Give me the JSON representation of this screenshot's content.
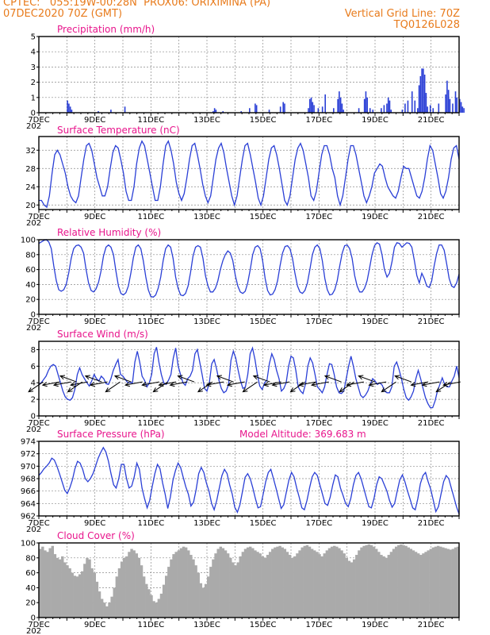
{
  "header": {
    "line1_left": "CPTEC:   055:19W-00:28N  PROX06: ORIXIMINA (PA)",
    "line2_left": "07DEC2020 70Z (GMT)",
    "line2_right": "Vertical Grid Line: 70Z",
    "line3_right": "TQ0126L028",
    "color": "#e87b1c"
  },
  "colors": {
    "series": "#2a3fd6",
    "title": "#e8158c",
    "cloud": "#aaaaaa",
    "grid": "#8a8a8a"
  },
  "x_axis": {
    "start": "7DEC",
    "end": "22DEC",
    "day_ticks": [
      "7DEC",
      "9DEC",
      "11DEC",
      "13DEC",
      "15DEC",
      "17DEC",
      "19DEC",
      "21DEC"
    ],
    "cut_label": "202"
  },
  "chart_data": [
    {
      "type": "bar",
      "title": "Precipitation (mm/h)",
      "ylim": [
        0,
        5
      ],
      "yticks": [
        "0",
        "1",
        "2",
        "3",
        "4",
        "5"
      ],
      "x_unit": "days since 7DEC 00Z",
      "bars": [
        [
          1.0,
          0.8
        ],
        [
          1.05,
          0.6
        ],
        [
          1.1,
          0.4
        ],
        [
          1.15,
          0.2
        ],
        [
          2.1,
          0.1
        ],
        [
          2.55,
          0.2
        ],
        [
          3.05,
          0.4
        ],
        [
          6.2,
          0.1
        ],
        [
          6.25,
          0.3
        ],
        [
          6.3,
          0.2
        ],
        [
          6.55,
          0.1
        ],
        [
          7.2,
          0.1
        ],
        [
          7.5,
          0.3
        ],
        [
          7.7,
          0.6
        ],
        [
          7.75,
          0.5
        ],
        [
          8.2,
          0.2
        ],
        [
          8.6,
          0.4
        ],
        [
          8.7,
          0.7
        ],
        [
          8.75,
          0.6
        ],
        [
          9.6,
          0.3
        ],
        [
          9.65,
          0.9
        ],
        [
          9.7,
          1.0
        ],
        [
          9.75,
          0.7
        ],
        [
          9.8,
          0.5
        ],
        [
          9.95,
          0.3
        ],
        [
          10.1,
          0.4
        ],
        [
          10.2,
          1.2
        ],
        [
          10.5,
          0.3
        ],
        [
          10.65,
          0.9
        ],
        [
          10.7,
          1.4
        ],
        [
          10.75,
          1.0
        ],
        [
          10.8,
          0.6
        ],
        [
          10.85,
          0.2
        ],
        [
          11.4,
          0.3
        ],
        [
          11.6,
          0.9
        ],
        [
          11.65,
          1.4
        ],
        [
          11.7,
          1.0
        ],
        [
          11.8,
          0.3
        ],
        [
          11.9,
          0.2
        ],
        [
          12.2,
          0.3
        ],
        [
          12.3,
          0.5
        ],
        [
          12.4,
          0.6
        ],
        [
          12.45,
          1.0
        ],
        [
          12.5,
          0.8
        ],
        [
          12.55,
          0.2
        ],
        [
          12.95,
          0.2
        ],
        [
          13.05,
          0.6
        ],
        [
          13.15,
          0.8
        ],
        [
          13.3,
          1.4
        ],
        [
          13.4,
          0.8
        ],
        [
          13.5,
          0.3
        ],
        [
          13.55,
          1.8
        ],
        [
          13.6,
          2.4
        ],
        [
          13.65,
          2.9
        ],
        [
          13.7,
          2.9
        ],
        [
          13.75,
          2.5
        ],
        [
          13.8,
          1.3
        ],
        [
          13.85,
          0.4
        ],
        [
          13.95,
          0.5
        ],
        [
          14.05,
          0.3
        ],
        [
          14.25,
          0.6
        ],
        [
          14.5,
          1.2
        ],
        [
          14.55,
          2.1
        ],
        [
          14.6,
          1.5
        ],
        [
          14.65,
          0.9
        ],
        [
          14.75,
          0.6
        ],
        [
          14.85,
          1.4
        ],
        [
          14.9,
          1.0
        ],
        [
          15.0,
          0.9
        ],
        [
          15.05,
          0.7
        ],
        [
          15.1,
          0.4
        ],
        [
          15.15,
          0.3
        ]
      ]
    },
    {
      "type": "line",
      "title": "Surface Temperature (nC)",
      "ylim": [
        19,
        35
      ],
      "yticks": [
        "20",
        "24",
        "28",
        "32"
      ],
      "values": [
        21,
        21,
        20,
        19.5,
        22,
        27,
        31,
        32,
        31,
        29,
        27,
        24,
        22,
        21,
        20.5,
        22,
        26,
        30,
        33,
        33.5,
        32,
        29,
        26,
        24,
        22,
        22,
        24,
        28,
        31.5,
        33,
        32.5,
        30,
        27,
        23,
        21,
        21,
        24,
        29,
        32.5,
        34,
        33,
        30,
        27,
        24,
        21,
        21,
        24,
        29,
        33,
        34,
        32,
        29,
        25,
        22.5,
        21,
        22.5,
        26,
        30,
        33,
        33.5,
        31,
        28,
        24.5,
        22,
        20.5,
        22,
        26,
        30,
        32.5,
        33.5,
        31.5,
        28,
        25,
        22,
        20,
        22,
        26,
        30,
        33,
        33.5,
        31,
        28,
        25,
        21.5,
        20,
        22,
        26,
        30,
        32.5,
        33,
        31,
        28,
        24.5,
        21,
        20,
        22,
        26,
        30,
        32.5,
        33.5,
        32,
        29,
        26,
        22,
        21,
        23,
        27,
        31,
        33,
        33,
        31,
        28,
        26,
        22,
        20,
        22,
        26,
        30,
        33,
        33,
        31,
        28,
        25,
        22,
        20.5,
        22,
        24,
        27,
        28,
        29,
        28.5,
        26,
        24,
        23,
        22,
        21.5,
        23,
        26,
        28.5,
        28,
        28,
        26,
        24,
        22,
        21.5,
        23,
        26,
        30,
        33,
        32,
        29,
        26,
        22.5,
        21.5,
        23,
        26,
        30,
        32.5,
        33,
        30
      ]
    },
    {
      "type": "line",
      "title": "Relative Humidity (%)",
      "ylim": [
        0,
        100
      ],
      "yticks": [
        "0",
        "20",
        "40",
        "60",
        "80",
        "100"
      ],
      "values": [
        95,
        97,
        99,
        100,
        97,
        88,
        65,
        45,
        33,
        31,
        33,
        40,
        55,
        75,
        88,
        92,
        93,
        90,
        82,
        60,
        42,
        32,
        30,
        34,
        43,
        58,
        78,
        90,
        93,
        90,
        80,
        58,
        38,
        28,
        26,
        29,
        38,
        55,
        76,
        90,
        93,
        88,
        72,
        50,
        33,
        24,
        23,
        26,
        35,
        50,
        72,
        88,
        93,
        90,
        75,
        50,
        35,
        26,
        25,
        28,
        38,
        56,
        78,
        90,
        92,
        90,
        75,
        52,
        38,
        30,
        30,
        35,
        45,
        60,
        72,
        80,
        85,
        82,
        72,
        52,
        38,
        30,
        28,
        31,
        42,
        60,
        80,
        90,
        92,
        88,
        72,
        48,
        32,
        26,
        27,
        33,
        45,
        65,
        82,
        91,
        92,
        88,
        75,
        55,
        38,
        30,
        28,
        32,
        42,
        60,
        80,
        90,
        93,
        88,
        72,
        48,
        33,
        26,
        27,
        33,
        45,
        65,
        82,
        92,
        93,
        88,
        75,
        52,
        38,
        30,
        30,
        35,
        45,
        62,
        80,
        92,
        96,
        94,
        80,
        60,
        50,
        55,
        70,
        90,
        96,
        95,
        90,
        93,
        96,
        95,
        90,
        72,
        52,
        42,
        55,
        48,
        38,
        36,
        45,
        65,
        82,
        93,
        93,
        86,
        68,
        48,
        38,
        36,
        42,
        54
      ]
    },
    {
      "type": "line",
      "title": "Surface Wind (m/s)",
      "ylim": [
        0,
        9
      ],
      "yticks": [
        "0",
        "2",
        "4",
        "6",
        "8"
      ],
      "values": [
        3.8,
        4,
        4.4,
        4.8,
        5.5,
        6,
        6.2,
        6,
        5,
        4,
        3,
        2.3,
        2,
        1.9,
        2.2,
        3.2,
        5,
        5.8,
        5,
        4.5,
        4,
        3.6,
        4.2,
        5,
        4.5,
        4.2,
        4.8,
        4.5,
        3.9,
        3.8,
        4.5,
        5.5,
        6.2,
        6.8,
        5,
        4.8,
        4.4,
        4,
        4,
        4,
        6.5,
        7.8,
        6.5,
        4.8,
        4.3,
        3.5,
        4,
        5,
        7.5,
        8.3,
        6.5,
        5,
        4,
        3.8,
        4.3,
        5,
        7,
        8.2,
        6,
        5,
        4,
        3.7,
        4.5,
        4.8,
        5.5,
        7.5,
        8,
        6.5,
        5,
        3.3,
        3,
        4,
        6.3,
        6.8,
        5.7,
        4.3,
        3.3,
        2.8,
        3,
        3.8,
        6.7,
        7.8,
        7,
        5.5,
        4.2,
        3.3,
        3.5,
        5,
        7.5,
        8.2,
        6.8,
        5,
        3.6,
        3.2,
        4,
        4.3,
        6.3,
        7.5,
        6.8,
        5.5,
        4.5,
        3,
        3.3,
        4,
        6,
        7.2,
        7,
        5.5,
        3.5,
        3,
        2.7,
        3.8,
        6,
        7,
        6.4,
        5,
        3.5,
        3.2,
        2.8,
        3.5,
        5,
        6.3,
        6.2,
        5,
        3.5,
        2.8,
        2.7,
        3,
        4.5,
        6,
        7.2,
        6,
        4.5,
        3.5,
        2.5,
        2.2,
        2.5,
        3,
        3.8,
        4.5,
        4.2,
        3.8,
        4,
        3.7,
        3,
        2.8,
        2.8,
        3.5,
        6,
        6.5,
        5.6,
        4.5,
        3.2,
        2.2,
        1.9,
        2.3,
        3,
        4.5,
        5.5,
        4.5,
        3.3,
        2.2,
        1.5,
        1,
        1,
        1.8,
        3,
        3.8,
        4.6,
        3.8,
        3.5,
        3.5,
        4.2,
        4.8,
        6,
        4.6
      ],
      "arrow_days": [
        0.15,
        0.75,
        1.15,
        1.35,
        1.55,
        1.75,
        2.25,
        2.45,
        2.9,
        3.3,
        3.7,
        4.3,
        4.6,
        4.9,
        5.3,
        5.55,
        6.2,
        6.6,
        6.95,
        7.35,
        7.8,
        8.25,
        8.65,
        8.95,
        9.5,
        9.9,
        10.35,
        10.8,
        11.25,
        11.6,
        12.0,
        12.4,
        12.75,
        13.3,
        13.9,
        14.3,
        14.7,
        15.05
      ]
    },
    {
      "type": "line",
      "title": "Surface Pressure (hPa)",
      "subtitle": "Model Altitude: 369.683  m",
      "ylim": [
        962,
        974
      ],
      "yticks": [
        "962",
        "964",
        "966",
        "968",
        "970",
        "972",
        "974"
      ],
      "values": [
        968.5,
        969,
        969.6,
        970,
        970.5,
        971.3,
        971,
        970,
        968.8,
        967.5,
        966.2,
        965.6,
        966.5,
        967.8,
        969.6,
        970.8,
        970.5,
        969.5,
        968,
        967.5,
        968,
        968.8,
        970,
        971.3,
        972.2,
        973,
        972.3,
        970.8,
        968.8,
        967,
        966.5,
        968,
        970.3,
        970.3,
        968,
        966.5,
        966.8,
        968.3,
        970.5,
        969.5,
        966.5,
        964.8,
        963.3,
        964.5,
        966.8,
        968.8,
        970.3,
        969.6,
        967.3,
        965.5,
        963.2,
        965,
        967.7,
        969.3,
        970.5,
        969.8,
        968.2,
        966.7,
        965.5,
        963.6,
        964.2,
        966.2,
        968.8,
        969.8,
        969,
        967.3,
        966,
        964,
        963,
        964.5,
        966.5,
        968.5,
        969.5,
        968.8,
        967,
        965.5,
        963.4,
        962.6,
        963.8,
        966,
        968.2,
        968.8,
        968,
        966.5,
        964.8,
        963.3,
        963.5,
        965.5,
        967.5,
        969,
        969.5,
        968,
        966.5,
        964.8,
        963.2,
        963.8,
        965.8,
        967.8,
        969,
        968.3,
        966.5,
        965,
        963.3,
        963,
        964.5,
        966.5,
        968.3,
        969,
        968.5,
        967,
        965.5,
        964,
        963.7,
        965,
        967,
        968.6,
        968.3,
        966.5,
        965.3,
        964,
        963.5,
        964.8,
        967,
        968.5,
        969,
        968,
        966.5,
        965,
        963.5,
        963.3,
        964.8,
        967,
        968.3,
        968,
        967,
        966,
        964.5,
        963.4,
        964,
        966,
        967.8,
        968.6,
        967.5,
        966,
        964.7,
        963.3,
        963,
        964.8,
        967.2,
        968.5,
        969,
        967.5,
        966.3,
        964.5,
        962.7,
        963.5,
        965.5,
        967.5,
        968.5,
        968,
        966.5,
        965,
        963.5,
        962.3
      ]
    },
    {
      "type": "bar",
      "title": "Cloud Cover (%)",
      "ylim": [
        0,
        100
      ],
      "yticks": [
        "0",
        "20",
        "40",
        "60",
        "80",
        "100"
      ],
      "values": [
        92,
        95,
        90,
        88,
        93,
        96,
        85,
        80,
        78,
        82,
        74,
        70,
        66,
        60,
        56,
        55,
        58,
        62,
        72,
        80,
        78,
        66,
        60,
        48,
        35,
        25,
        20,
        15,
        20,
        28,
        40,
        55,
        66,
        75,
        80,
        82,
        88,
        92,
        90,
        86,
        80,
        70,
        55,
        45,
        38,
        30,
        22,
        20,
        25,
        32,
        44,
        56,
        68,
        78,
        85,
        88,
        90,
        93,
        95,
        94,
        90,
        84,
        78,
        70,
        60,
        46,
        40,
        45,
        55,
        68,
        78,
        86,
        92,
        95,
        93,
        90,
        86,
        80,
        74,
        70,
        74,
        82,
        88,
        92,
        94,
        95,
        93,
        90,
        88,
        86,
        82,
        80,
        84,
        88,
        92,
        94,
        95,
        96,
        94,
        92,
        88,
        84,
        80,
        82,
        86,
        90,
        94,
        96,
        97,
        95,
        92,
        90,
        88,
        85,
        82,
        86,
        90,
        93,
        95,
        96,
        95,
        93,
        90,
        86,
        80,
        76,
        74,
        78,
        84,
        90,
        94,
        96,
        97,
        98,
        97,
        95,
        92,
        88,
        84,
        82,
        80,
        84,
        88,
        92,
        95,
        97,
        98,
        97,
        96,
        94,
        92,
        90,
        88,
        86,
        84,
        86,
        88,
        90,
        92,
        94,
        95,
        96,
        95,
        94,
        93,
        92,
        91,
        92,
        94,
        95
      ]
    }
  ]
}
